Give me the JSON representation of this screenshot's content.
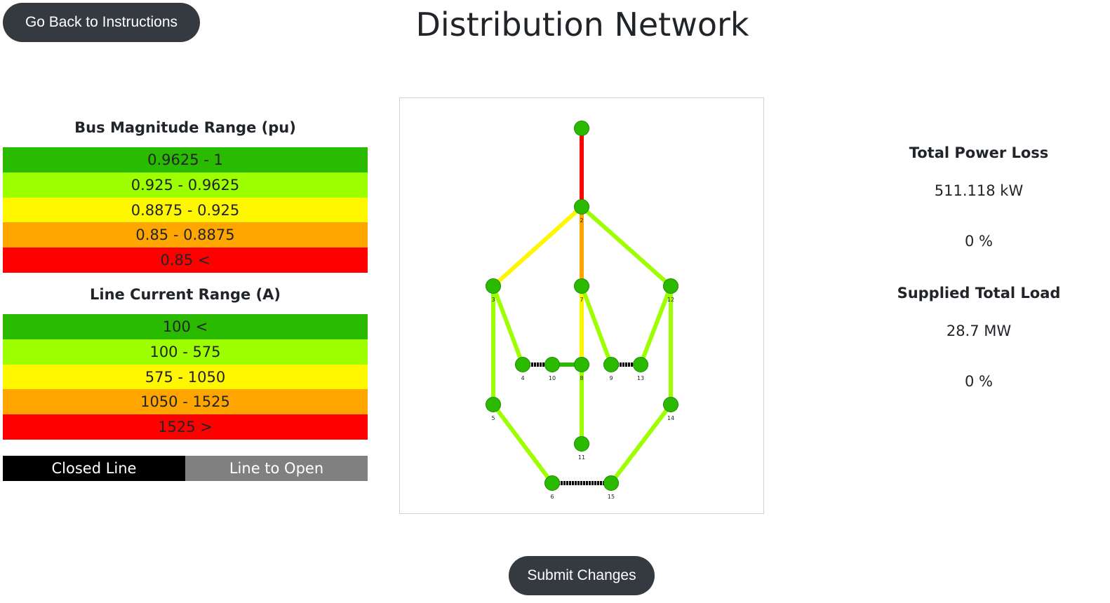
{
  "header": {
    "back_button": "Go Back to Instructions",
    "title": "Distribution Network"
  },
  "bus_legend": {
    "title": "Bus Magnitude Range (pu)",
    "ranges": [
      {
        "label": "0.9625 - 1",
        "color": "#2ABA00"
      },
      {
        "label": "0.925 - 0.9625",
        "color": "#9EFF00"
      },
      {
        "label": "0.8875 - 0.925",
        "color": "#FFF700"
      },
      {
        "label": "0.85 - 0.8875",
        "color": "#FFA500"
      },
      {
        "label": "0.85 <",
        "color": "#FF0000"
      }
    ]
  },
  "line_legend": {
    "title": "Line Current Range (A)",
    "ranges": [
      {
        "label": "100 <",
        "color": "#2ABA00"
      },
      {
        "label": "100 - 575",
        "color": "#9EFF00"
      },
      {
        "label": "575 - 1050",
        "color": "#FFF700"
      },
      {
        "label": "1050 - 1525",
        "color": "#FFA500"
      },
      {
        "label": "1525 >",
        "color": "#FF0000"
      }
    ]
  },
  "line_state_legend": {
    "closed": {
      "label": "Closed Line",
      "color": "#000000"
    },
    "open": {
      "label": "Line to Open",
      "color": "#808080"
    }
  },
  "network": {
    "nodes": [
      {
        "id": "1",
        "label": ""
      },
      {
        "id": "2",
        "label": "2"
      },
      {
        "id": "3",
        "label": "3"
      },
      {
        "id": "7",
        "label": "7"
      },
      {
        "id": "12",
        "label": "12"
      },
      {
        "id": "4",
        "label": "4"
      },
      {
        "id": "10",
        "label": "10"
      },
      {
        "id": "8",
        "label": "8"
      },
      {
        "id": "9",
        "label": "9"
      },
      {
        "id": "13",
        "label": "13"
      },
      {
        "id": "5",
        "label": "5"
      },
      {
        "id": "14",
        "label": "14"
      },
      {
        "id": "11",
        "label": "11"
      },
      {
        "id": "6",
        "label": "6"
      },
      {
        "id": "15",
        "label": "15"
      }
    ],
    "node_color": "#2ABA00",
    "lines": [
      {
        "from": "1",
        "to": "2",
        "color": "#FF0000"
      },
      {
        "from": "2",
        "to": "3",
        "color": "#FFF700"
      },
      {
        "from": "2",
        "to": "7",
        "color": "#FFA500"
      },
      {
        "from": "2",
        "to": "12",
        "color": "#9EFF00"
      },
      {
        "from": "3",
        "to": "4",
        "color": "#9EFF00"
      },
      {
        "from": "3",
        "to": "5",
        "color": "#9EFF00"
      },
      {
        "from": "7",
        "to": "8",
        "color": "#FFF700"
      },
      {
        "from": "7",
        "to": "9",
        "color": "#9EFF00"
      },
      {
        "from": "12",
        "to": "13",
        "color": "#9EFF00"
      },
      {
        "from": "12",
        "to": "14",
        "color": "#9EFF00"
      },
      {
        "from": "4",
        "to": "10",
        "color": "#000000",
        "closed_tie": true
      },
      {
        "from": "10",
        "to": "8",
        "color": "#2ABA00"
      },
      {
        "from": "9",
        "to": "13",
        "color": "#000000",
        "closed_tie": true
      },
      {
        "from": "8",
        "to": "11",
        "color": "#9EFF00"
      },
      {
        "from": "5",
        "to": "6",
        "color": "#9EFF00"
      },
      {
        "from": "14",
        "to": "15",
        "color": "#9EFF00"
      },
      {
        "from": "6",
        "to": "15",
        "color": "#000000",
        "closed_tie": true
      }
    ]
  },
  "stats": {
    "power_loss_title": "Total Power Loss",
    "power_loss_value": "511.118 kW",
    "power_loss_pct": "0 %",
    "load_title": "Supplied Total Load",
    "load_value": "28.7 MW",
    "load_pct": "0 %"
  },
  "submit_button": "Submit Changes"
}
